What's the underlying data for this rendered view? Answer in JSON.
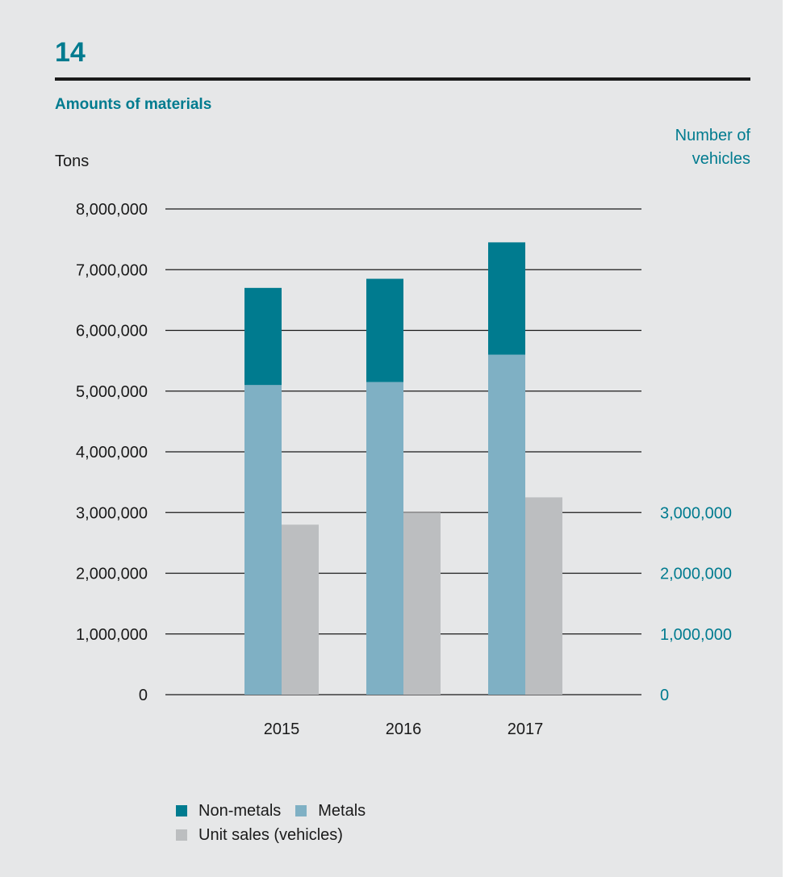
{
  "figure_number": "14",
  "chart_data": {
    "type": "bar",
    "title": "Amounts of materials",
    "categories": [
      "2015",
      "2016",
      "2017"
    ],
    "ylabel": "Tons",
    "y2label": "Number of vehicles",
    "ylim": [
      0,
      8000000
    ],
    "yticks": [
      "0",
      "1,000,000",
      "2,000,000",
      "3,000,000",
      "4,000,000",
      "5,000,000",
      "6,000,000",
      "7,000,000",
      "8,000,000"
    ],
    "y2lim": [
      0,
      8000000
    ],
    "y2ticks": [
      "0",
      "1,000,000",
      "2,000,000",
      "3,000,000"
    ],
    "stacked": true,
    "series": [
      {
        "name": "Metals",
        "axis": "left",
        "stack": "materials",
        "color": "#7fb0c4",
        "values": [
          5100000,
          5150000,
          5600000
        ]
      },
      {
        "name": "Non-metals",
        "axis": "left",
        "stack": "materials",
        "color": "#007b8f",
        "values": [
          1600000,
          1700000,
          1850000
        ]
      },
      {
        "name": "Unit sales (vehicles)",
        "axis": "right",
        "stack": "units",
        "color": "#bcbec0",
        "values": [
          2800000,
          3000000,
          3250000
        ]
      }
    ],
    "legend": [
      {
        "label": "Non-metals",
        "color": "#007b8f"
      },
      {
        "label": "Metals",
        "color": "#7fb0c4"
      },
      {
        "label": "Unit sales (vehicles)",
        "color": "#bcbec0"
      }
    ],
    "legend_position": "bottom",
    "grid": true,
    "colors": {
      "accent": "#007b8f",
      "gridline": "#1a1a1a",
      "text": "#1a1a1a"
    }
  }
}
